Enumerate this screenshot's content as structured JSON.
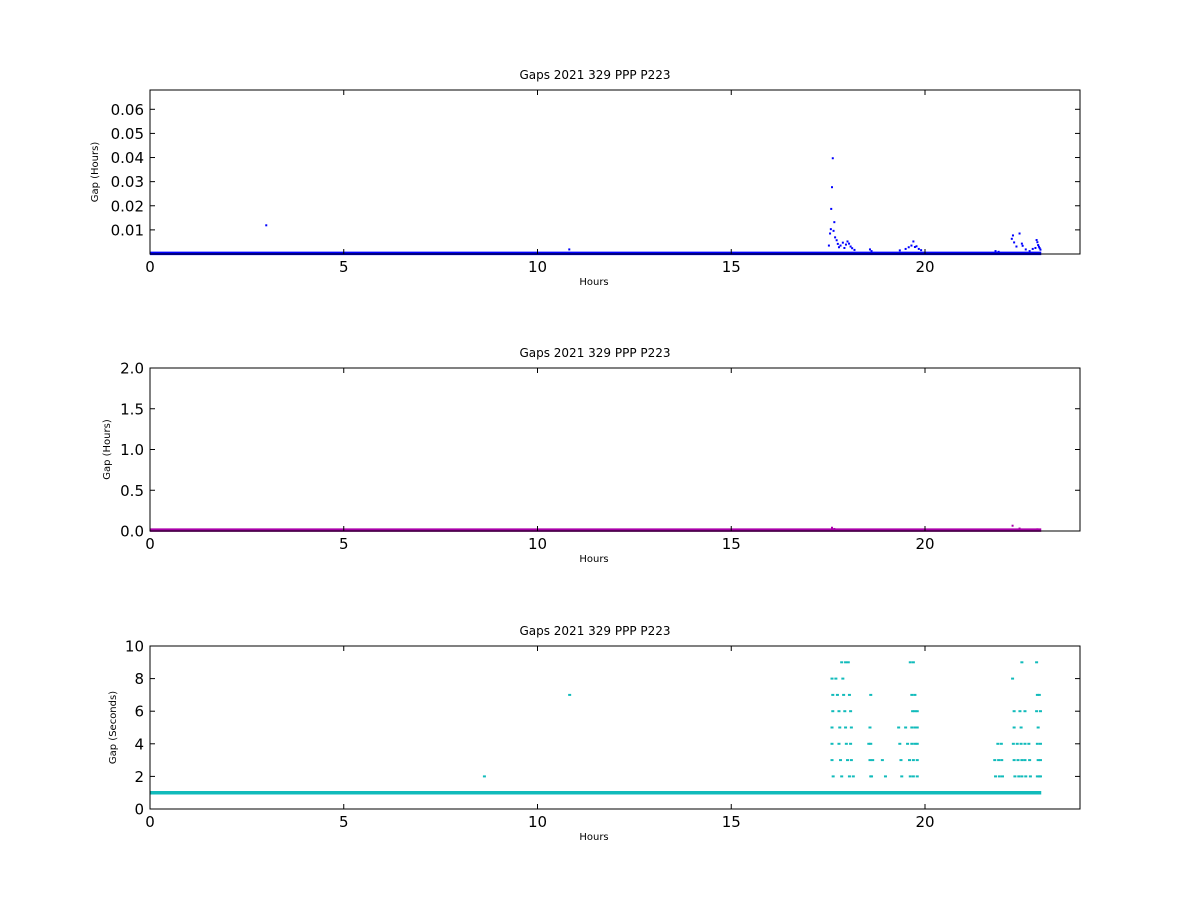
{
  "chart_data": [
    {
      "type": "scatter",
      "title": "Gaps 2021 329 PPP  P223",
      "xlabel": "Hours",
      "ylabel": "Gap (Hours)",
      "xlim": [
        0,
        24
      ],
      "ylim": [
        0,
        0.068
      ],
      "xticks": [
        "0",
        "5",
        "10",
        "15",
        "20"
      ],
      "yticks": [
        "0.01",
        "0.02",
        "0.03",
        "0.04",
        "0.05",
        "0.06"
      ],
      "ytick_values": [
        0.01,
        0.02,
        0.03,
        0.04,
        0.05,
        0.06
      ],
      "grid": false,
      "color": "#0000ff",
      "baseline": {
        "y": 0.00028,
        "x_start": 0,
        "x_end": 23.0
      },
      "points": [
        [
          3.0,
          0.0119
        ],
        [
          10.82,
          0.0019
        ],
        [
          17.52,
          0.0035
        ],
        [
          17.55,
          0.0085
        ],
        [
          17.57,
          0.0103
        ],
        [
          17.58,
          0.0187
        ],
        [
          17.6,
          0.0277
        ],
        [
          17.62,
          0.0397
        ],
        [
          17.64,
          0.0096
        ],
        [
          17.66,
          0.0132
        ],
        [
          17.68,
          0.0069
        ],
        [
          17.72,
          0.0057
        ],
        [
          17.75,
          0.0042
        ],
        [
          17.78,
          0.0028
        ],
        [
          17.82,
          0.0035
        ],
        [
          17.88,
          0.0047
        ],
        [
          17.92,
          0.0025
        ],
        [
          17.96,
          0.0039
        ],
        [
          18.0,
          0.0052
        ],
        [
          18.04,
          0.0043
        ],
        [
          18.08,
          0.0031
        ],
        [
          18.12,
          0.0024
        ],
        [
          18.18,
          0.0017
        ],
        [
          18.58,
          0.0019
        ],
        [
          18.62,
          0.0012
        ],
        [
          19.35,
          0.0015
        ],
        [
          19.5,
          0.0021
        ],
        [
          19.58,
          0.0028
        ],
        [
          19.65,
          0.0035
        ],
        [
          19.7,
          0.0052
        ],
        [
          19.74,
          0.0029
        ],
        [
          19.78,
          0.0032
        ],
        [
          19.84,
          0.0021
        ],
        [
          19.9,
          0.0016
        ],
        [
          21.82,
          0.0012
        ],
        [
          21.9,
          0.0009
        ],
        [
          22.24,
          0.0063
        ],
        [
          22.27,
          0.0077
        ],
        [
          22.3,
          0.0048
        ],
        [
          22.36,
          0.0031
        ],
        [
          22.44,
          0.0085
        ],
        [
          22.5,
          0.0043
        ],
        [
          22.52,
          0.0034
        ],
        [
          22.6,
          0.0019
        ],
        [
          22.7,
          0.0012
        ],
        [
          22.78,
          0.0021
        ],
        [
          22.85,
          0.0025
        ],
        [
          22.88,
          0.0058
        ],
        [
          22.9,
          0.0049
        ],
        [
          22.92,
          0.0037
        ],
        [
          22.94,
          0.003
        ],
        [
          22.96,
          0.0024
        ],
        [
          22.98,
          0.0018
        ]
      ]
    },
    {
      "type": "scatter",
      "title": "Gaps 2021 329 PPP  P223",
      "xlabel": "Hours",
      "ylabel": "Gap (Hours)",
      "xlim": [
        0,
        24
      ],
      "ylim": [
        0,
        2.0
      ],
      "xticks": [
        "0",
        "5",
        "10",
        "15",
        "20"
      ],
      "yticks": [
        "0.0",
        "0.5",
        "1.0",
        "1.5",
        "2.0"
      ],
      "ytick_values": [
        0,
        0.5,
        1.0,
        1.5,
        2.0
      ],
      "grid": false,
      "color": "#aa00aa",
      "baseline": {
        "y": 0.01,
        "x_start": 0,
        "x_end": 23.0
      },
      "points": [
        [
          17.6,
          0.04
        ],
        [
          17.66,
          0.025
        ],
        [
          17.9,
          0.015
        ],
        [
          19.7,
          0.015
        ],
        [
          22.26,
          0.065
        ],
        [
          22.44,
          0.03
        ],
        [
          22.9,
          0.02
        ]
      ]
    },
    {
      "type": "scatter",
      "title": "Gaps 2021 329 PPP  P223",
      "xlabel": "Hours",
      "ylabel": "Gap (Seconds)",
      "xlim": [
        0,
        24
      ],
      "ylim": [
        0,
        10
      ],
      "xticks": [
        "0",
        "5",
        "10",
        "15",
        "20"
      ],
      "yticks": [
        "0",
        "2",
        "4",
        "6",
        "8",
        "10"
      ],
      "ytick_values": [
        0,
        2,
        4,
        6,
        8,
        10
      ],
      "grid": false,
      "color": "#11bbbb",
      "baseline": {
        "y": 1,
        "x_start": 0,
        "x_end": 23.0
      },
      "points": [
        [
          8.63,
          2
        ],
        [
          10.83,
          7
        ],
        [
          17.6,
          8
        ],
        [
          17.62,
          7
        ],
        [
          17.62,
          6
        ],
        [
          17.6,
          5
        ],
        [
          17.6,
          4
        ],
        [
          17.6,
          3
        ],
        [
          17.63,
          2
        ],
        [
          17.7,
          8
        ],
        [
          17.74,
          7
        ],
        [
          17.78,
          6
        ],
        [
          17.8,
          5
        ],
        [
          17.78,
          4
        ],
        [
          17.82,
          3
        ],
        [
          17.85,
          2
        ],
        [
          17.85,
          9
        ],
        [
          17.88,
          8
        ],
        [
          17.9,
          7
        ],
        [
          17.93,
          6
        ],
        [
          17.95,
          5
        ],
        [
          17.97,
          4
        ],
        [
          18.0,
          3
        ],
        [
          18.05,
          2
        ],
        [
          17.95,
          9
        ],
        [
          18.02,
          9
        ],
        [
          18.05,
          7
        ],
        [
          18.08,
          6
        ],
        [
          18.1,
          5
        ],
        [
          18.08,
          4
        ],
        [
          18.1,
          3
        ],
        [
          18.15,
          2
        ],
        [
          18.6,
          7
        ],
        [
          18.58,
          5
        ],
        [
          18.55,
          4
        ],
        [
          18.6,
          4
        ],
        [
          18.58,
          3
        ],
        [
          18.6,
          2
        ],
        [
          18.65,
          3
        ],
        [
          18.62,
          2
        ],
        [
          18.9,
          3
        ],
        [
          18.98,
          2
        ],
        [
          19.32,
          5
        ],
        [
          19.35,
          4
        ],
        [
          19.38,
          3
        ],
        [
          19.4,
          2
        ],
        [
          19.5,
          5
        ],
        [
          19.55,
          4
        ],
        [
          19.6,
          3
        ],
        [
          19.62,
          2
        ],
        [
          19.62,
          9
        ],
        [
          19.7,
          9
        ],
        [
          19.66,
          7
        ],
        [
          19.74,
          7
        ],
        [
          19.68,
          6
        ],
        [
          19.74,
          6
        ],
        [
          19.8,
          6
        ],
        [
          19.66,
          5
        ],
        [
          19.74,
          5
        ],
        [
          19.8,
          5
        ],
        [
          19.66,
          4
        ],
        [
          19.74,
          4
        ],
        [
          19.8,
          4
        ],
        [
          19.7,
          3
        ],
        [
          19.8,
          3
        ],
        [
          19.7,
          2
        ],
        [
          19.8,
          2
        ],
        [
          21.8,
          3
        ],
        [
          21.82,
          2
        ],
        [
          21.88,
          4
        ],
        [
          21.9,
          3
        ],
        [
          21.92,
          2
        ],
        [
          21.97,
          4
        ],
        [
          21.98,
          3
        ],
        [
          22.0,
          2
        ],
        [
          22.26,
          8
        ],
        [
          22.3,
          6
        ],
        [
          22.3,
          5
        ],
        [
          22.28,
          4
        ],
        [
          22.3,
          3
        ],
        [
          22.32,
          2
        ],
        [
          22.38,
          4
        ],
        [
          22.4,
          3
        ],
        [
          22.42,
          2
        ],
        [
          22.45,
          6
        ],
        [
          22.48,
          5
        ],
        [
          22.48,
          4
        ],
        [
          22.5,
          3
        ],
        [
          22.5,
          2
        ],
        [
          22.5,
          9
        ],
        [
          22.58,
          6
        ],
        [
          22.58,
          4
        ],
        [
          22.58,
          3
        ],
        [
          22.6,
          2
        ],
        [
          22.68,
          4
        ],
        [
          22.7,
          3
        ],
        [
          22.72,
          2
        ],
        [
          22.88,
          9
        ],
        [
          22.9,
          7
        ],
        [
          22.95,
          7
        ],
        [
          22.88,
          6
        ],
        [
          22.92,
          5
        ],
        [
          22.9,
          4
        ],
        [
          22.92,
          3
        ],
        [
          22.9,
          2
        ],
        [
          22.95,
          2
        ],
        [
          22.98,
          6
        ],
        [
          22.98,
          4
        ],
        [
          22.98,
          3
        ],
        [
          22.98,
          2
        ]
      ]
    }
  ]
}
